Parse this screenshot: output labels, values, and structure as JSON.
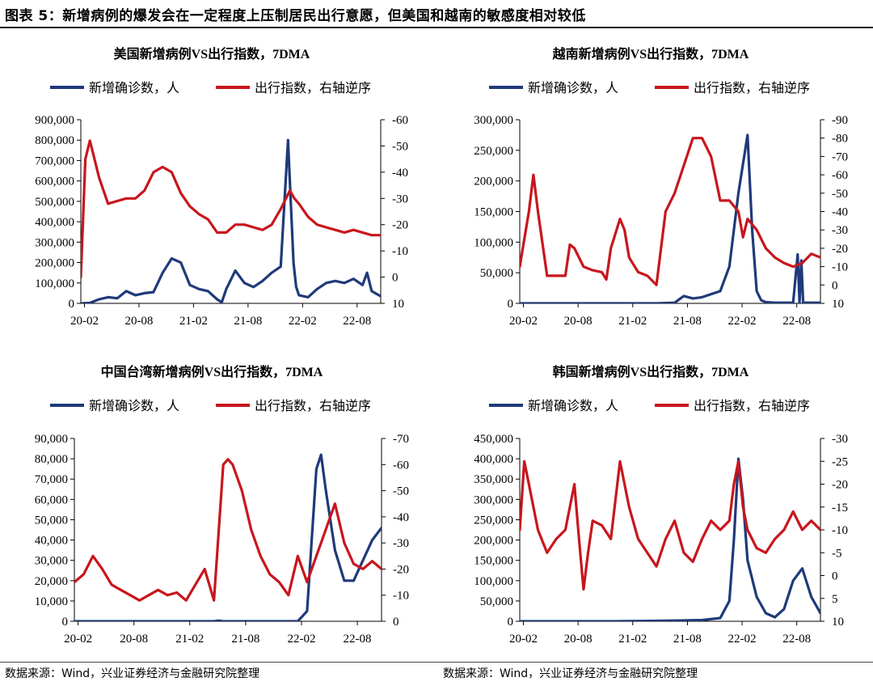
{
  "figure": {
    "title": "图表 5：新增病例的爆发会在一定程度上压制居民出行意愿，但美国和越南的敏感度相对较低",
    "source_left": "数据来源：Wind，兴业证券经济与金融研究院整理",
    "source_right": "数据来源：Wind，兴业证券经济与金融研究院整理"
  },
  "colors": {
    "cases": "#1f3a7a",
    "mobility": "#c8161d"
  },
  "chart_data": [
    {
      "id": "us",
      "type": "line",
      "title": "美国新增病例VS出行指数，7DMA",
      "legend": [
        "新增确诊数，人",
        "出行指数，右轴逆序"
      ],
      "x_ticks": [
        "20-02",
        "20-08",
        "21-02",
        "21-08",
        "22-02",
        "22-08"
      ],
      "x_range": [
        0,
        33
      ],
      "left_axis": {
        "min": 0,
        "max": 900000,
        "step": 100000,
        "ticks": [
          "0",
          "100,000",
          "200,000",
          "300,000",
          "400,000",
          "500,000",
          "600,000",
          "700,000",
          "800,000",
          "900,000"
        ]
      },
      "right_axis": {
        "min": -60,
        "max": 10,
        "step": 10,
        "reversed": true,
        "ticks": [
          "-60",
          "-50",
          "-40",
          "-30",
          "-20",
          "-10",
          "0",
          "10"
        ]
      },
      "series": [
        {
          "name": "新增确诊数，人",
          "axis": "left",
          "color": "#1f3a7a",
          "x": [
            0,
            1,
            2,
            3,
            4,
            5,
            6,
            7,
            8,
            9,
            10,
            11,
            12,
            13,
            14,
            15,
            15.5,
            16,
            17,
            18,
            19,
            20,
            21,
            22,
            22.8,
            23.1,
            23.4,
            23.7,
            24,
            25,
            26,
            27,
            28,
            29,
            30,
            31,
            31.5,
            32,
            33
          ],
          "y": [
            0,
            2000,
            20000,
            30000,
            25000,
            60000,
            40000,
            50000,
            55000,
            150000,
            220000,
            200000,
            90000,
            70000,
            60000,
            20000,
            5000,
            70000,
            160000,
            100000,
            80000,
            110000,
            150000,
            180000,
            800000,
            500000,
            200000,
            80000,
            40000,
            30000,
            70000,
            100000,
            110000,
            100000,
            120000,
            90000,
            150000,
            60000,
            35000
          ]
        },
        {
          "name": "出行指数，右轴逆序",
          "axis": "right",
          "color": "#c8161d",
          "x": [
            0,
            0.5,
            1,
            1.5,
            2,
            3,
            4,
            5,
            6,
            7,
            8,
            9,
            10,
            11,
            12,
            13,
            14,
            15,
            16,
            17,
            18,
            19,
            20,
            21,
            22,
            23,
            23.5,
            24,
            25,
            26,
            27,
            28,
            29,
            30,
            31,
            32,
            33
          ],
          "y": [
            0,
            -45,
            -52,
            -45,
            -38,
            -28,
            -29,
            -30,
            -30,
            -33,
            -40,
            -42,
            -40,
            -32,
            -27,
            -24,
            -22,
            -17,
            -17,
            -20,
            -20,
            -19,
            -18,
            -20,
            -26,
            -33,
            -30,
            -28,
            -23,
            -20,
            -19,
            -18,
            -17,
            -18,
            -17,
            -16,
            -16
          ]
        }
      ]
    },
    {
      "id": "vn",
      "type": "line",
      "title": "越南新增病例VS出行指数，7DMA",
      "legend": [
        "新增确诊数，人",
        "出行指数，右轴逆序"
      ],
      "x_ticks": [
        "20-02",
        "20-08",
        "21-02",
        "21-08",
        "22-02",
        "22-08"
      ],
      "x_range": [
        0,
        33
      ],
      "left_axis": {
        "min": 0,
        "max": 300000,
        "step": 50000,
        "ticks": [
          "0",
          "50,000",
          "100,000",
          "150,000",
          "200,000",
          "250,000",
          "300,000"
        ]
      },
      "right_axis": {
        "min": -90,
        "max": 10,
        "step": 10,
        "reversed": true,
        "ticks": [
          "-90",
          "-80",
          "-70",
          "-60",
          "-50",
          "-40",
          "-30",
          "-20",
          "-10",
          "0",
          "10"
        ]
      },
      "series": [
        {
          "name": "新增确诊数，人",
          "axis": "left",
          "color": "#1f3a7a",
          "x": [
            0,
            5,
            10,
            15,
            17,
            18,
            19,
            20,
            22,
            23,
            24,
            25,
            25.5,
            26,
            26.5,
            27,
            28,
            30,
            30.5,
            30.7,
            30.9,
            31.1,
            32,
            33
          ],
          "y": [
            0,
            0,
            0,
            0,
            1000,
            12000,
            8000,
            10000,
            20000,
            60000,
            180000,
            275000,
            120000,
            20000,
            5000,
            2000,
            1000,
            1000,
            80000,
            1000,
            70000,
            1000,
            1000,
            1000
          ]
        },
        {
          "name": "出行指数，右轴逆序",
          "axis": "right",
          "color": "#c8161d",
          "x": [
            0,
            1,
            1.5,
            2,
            3,
            4,
            5,
            5.5,
            6,
            7,
            8,
            9,
            9.5,
            10,
            11,
            11.5,
            12,
            13,
            14,
            15,
            16,
            17,
            18,
            19,
            20,
            21,
            22,
            23,
            24,
            24.5,
            25,
            26,
            27,
            28,
            29,
            30,
            31,
            32,
            33
          ],
          "y": [
            -10,
            -40,
            -60,
            -40,
            -5,
            -5,
            -5,
            -22,
            -20,
            -10,
            -8,
            -7,
            -3,
            -20,
            -36,
            -30,
            -15,
            -7,
            -5,
            0,
            -40,
            -50,
            -65,
            -80,
            -80,
            -70,
            -46,
            -46,
            -40,
            -26,
            -36,
            -30,
            -20,
            -15,
            -12,
            -10,
            -12,
            -17,
            -15
          ]
        }
      ]
    },
    {
      "id": "tw",
      "type": "line",
      "title": "中国台湾新增病例VS出行指数，7DMA",
      "legend": [
        "新增确诊数，人",
        "出行指数，右轴逆序"
      ],
      "x_ticks": [
        "20-02",
        "20-08",
        "21-02",
        "21-08",
        "22-02",
        "22-08"
      ],
      "x_range": [
        0,
        33
      ],
      "left_axis": {
        "min": 0,
        "max": 90000,
        "step": 10000,
        "ticks": [
          "0",
          "10,000",
          "20,000",
          "30,000",
          "40,000",
          "50,000",
          "60,000",
          "70,000",
          "80,000",
          "90,000"
        ]
      },
      "right_axis": {
        "min": -70,
        "max": 0,
        "step": 10,
        "reversed": true,
        "ticks": [
          "-70",
          "-60",
          "-50",
          "-40",
          "-30",
          "-20",
          "-10",
          "0"
        ]
      },
      "series": [
        {
          "name": "新增确诊数，人",
          "axis": "left",
          "color": "#1f3a7a",
          "x": [
            0,
            10,
            15,
            15.5,
            16,
            20,
            24,
            25,
            25.5,
            26,
            26.5,
            27,
            28,
            29,
            30,
            31,
            32,
            33
          ],
          "y": [
            0,
            0,
            0,
            300,
            0,
            0,
            0,
            5000,
            40000,
            75000,
            82000,
            65000,
            35000,
            20000,
            20000,
            30000,
            40000,
            46000
          ]
        },
        {
          "name": "出行指数，右轴逆序",
          "axis": "right",
          "color": "#c8161d",
          "x": [
            0,
            1,
            2,
            3,
            4,
            5,
            6,
            7,
            8,
            9,
            10,
            11,
            12,
            13,
            14,
            15,
            16,
            16.5,
            17,
            18,
            19,
            20,
            21,
            22,
            23,
            24,
            25,
            26,
            27,
            28,
            29,
            30,
            31,
            32,
            33
          ],
          "y": [
            -15,
            -18,
            -25,
            -20,
            -14,
            -12,
            -10,
            -8,
            -10,
            -12,
            -10,
            -11,
            -8,
            -14,
            -20,
            -8,
            -60,
            -62,
            -60,
            -50,
            -35,
            -25,
            -18,
            -15,
            -10,
            -25,
            -15,
            -25,
            -35,
            -45,
            -30,
            -22,
            -20,
            -23,
            -20
          ]
        }
      ]
    },
    {
      "id": "kr",
      "type": "line",
      "title": "韩国新增病例VS出行指数，7DMA",
      "legend": [
        "新增确诊数，人",
        "出行指数，右轴逆序"
      ],
      "x_ticks": [
        "20-02",
        "20-08",
        "21-02",
        "21-08",
        "22-02",
        "22-08"
      ],
      "x_range": [
        0,
        33
      ],
      "left_axis": {
        "min": 0,
        "max": 450000,
        "step": 50000,
        "ticks": [
          "0",
          "50,000",
          "100,000",
          "150,000",
          "200,000",
          "250,000",
          "300,000",
          "350,000",
          "400,000",
          "450,000"
        ]
      },
      "right_axis": {
        "min": -30,
        "max": 10,
        "step": 5,
        "reversed": true,
        "ticks": [
          "-30",
          "-25",
          "-20",
          "-15",
          "-10",
          "-5",
          "0",
          "5",
          "10"
        ]
      },
      "series": [
        {
          "name": "新增确诊数，人",
          "axis": "left",
          "color": "#1f3a7a",
          "x": [
            0,
            10,
            15,
            18,
            20,
            22,
            23,
            23.5,
            24,
            24.5,
            25,
            26,
            27,
            28,
            29,
            30,
            31,
            32,
            33
          ],
          "y": [
            0,
            0,
            1000,
            2000,
            3000,
            8000,
            50000,
            200000,
            400000,
            300000,
            150000,
            60000,
            20000,
            10000,
            30000,
            100000,
            130000,
            60000,
            20000
          ]
        },
        {
          "name": "出行指数，右轴逆序",
          "axis": "right",
          "color": "#c8161d",
          "x": [
            0,
            0.5,
            1,
            2,
            3,
            4,
            5,
            6,
            6.5,
            7,
            7.5,
            8,
            9,
            10,
            11,
            12,
            13,
            14,
            15,
            16,
            17,
            18,
            19,
            20,
            21,
            22,
            23,
            23.5,
            24,
            24.5,
            25,
            26,
            27,
            28,
            29,
            30,
            31,
            32,
            33
          ],
          "y": [
            -10,
            -25,
            -20,
            -10,
            -5,
            -8,
            -10,
            -20,
            -8,
            3,
            -5,
            -12,
            -11,
            -8,
            -25,
            -15,
            -8,
            -5,
            -2,
            -8,
            -12,
            -5,
            -3,
            -8,
            -12,
            -10,
            -12,
            -20,
            -25,
            -15,
            -10,
            -6,
            -5,
            -8,
            -10,
            -14,
            -10,
            -12,
            -10
          ]
        }
      ]
    }
  ]
}
